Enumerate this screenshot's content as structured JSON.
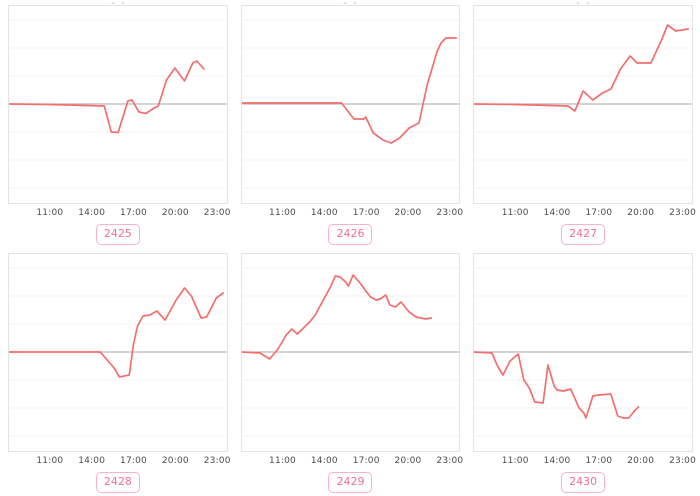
{
  "page": {
    "background": "#ffffff"
  },
  "styles": {
    "line_color": "#f46e6e",
    "zero_line_color": "#bababa",
    "grid_color": "#f5f2f2",
    "plot_border_color": "#e3e3e3",
    "tick_text_color": "#4c4c4c",
    "badge_border_color": "#f8b3c6",
    "badge_text_color": "#ee7096"
  },
  "axis": {
    "tick_labels": [
      "11:00",
      "14:00",
      "17:00",
      "20:00",
      "23:00"
    ],
    "tick_hours": [
      11,
      14,
      17,
      20,
      23
    ],
    "x_domain_hours": [
      8.0,
      23.75
    ],
    "y_domain": [
      -100,
      99
    ],
    "baseline_value": 0,
    "grid_step_units": 28,
    "grid_on": true,
    "legend": "none",
    "y_tick_labels": []
  },
  "chart_data": [
    {
      "id": "2425",
      "type": "line",
      "title": "",
      "xlabel": "",
      "ylabel": "",
      "x_unit": "time_of_day_hours",
      "y_unit": "arbitrary_units_vs_baseline",
      "points": [
        [
          8.0,
          0
        ],
        [
          11.0,
          -0.5
        ],
        [
          14.9,
          -2
        ],
        [
          15.4,
          -28
        ],
        [
          15.9,
          -28.5
        ],
        [
          16.6,
          3
        ],
        [
          16.9,
          4
        ],
        [
          17.4,
          -8
        ],
        [
          17.9,
          -9.5
        ],
        [
          18.5,
          -4
        ],
        [
          18.8,
          -2
        ],
        [
          19.4,
          24
        ],
        [
          20.0,
          36
        ],
        [
          20.7,
          23
        ],
        [
          21.3,
          41
        ],
        [
          21.6,
          43
        ],
        [
          22.1,
          35
        ]
      ]
    },
    {
      "id": "2426",
      "type": "line",
      "title": "",
      "xlabel": "",
      "ylabel": "",
      "x_unit": "time_of_day_hours",
      "y_unit": "arbitrary_units_vs_baseline",
      "points": [
        [
          8.0,
          1
        ],
        [
          12.0,
          1
        ],
        [
          15.2,
          1
        ],
        [
          16.1,
          -15
        ],
        [
          16.8,
          -15
        ],
        [
          16.95,
          -13
        ],
        [
          17.5,
          -29
        ],
        [
          18.2,
          -36
        ],
        [
          18.8,
          -39
        ],
        [
          19.4,
          -34
        ],
        [
          20.1,
          -24
        ],
        [
          20.8,
          -19
        ],
        [
          21.4,
          19
        ],
        [
          22.1,
          52
        ],
        [
          22.4,
          61
        ],
        [
          22.75,
          66
        ],
        [
          23.5,
          66
        ]
      ]
    },
    {
      "id": "2427",
      "type": "line",
      "title": "",
      "xlabel": "",
      "ylabel": "",
      "x_unit": "time_of_day_hours",
      "y_unit": "arbitrary_units_vs_baseline",
      "points": [
        [
          8.0,
          0
        ],
        [
          11.0,
          -0.5
        ],
        [
          14.8,
          -2
        ],
        [
          15.3,
          -7
        ],
        [
          15.9,
          13
        ],
        [
          16.6,
          4
        ],
        [
          17.3,
          11
        ],
        [
          17.9,
          15
        ],
        [
          18.6,
          35
        ],
        [
          19.3,
          48
        ],
        [
          19.8,
          41
        ],
        [
          20.8,
          41
        ],
        [
          21.6,
          65
        ],
        [
          22.0,
          79
        ],
        [
          22.6,
          73
        ],
        [
          23.5,
          75
        ]
      ]
    },
    {
      "id": "2428",
      "type": "line",
      "title": "",
      "xlabel": "",
      "ylabel": "",
      "x_unit": "time_of_day_hours",
      "y_unit": "arbitrary_units_vs_baseline",
      "points": [
        [
          8.0,
          0
        ],
        [
          11.0,
          0
        ],
        [
          14.6,
          0
        ],
        [
          15.3,
          -11
        ],
        [
          15.6,
          -16
        ],
        [
          16.0,
          -25
        ],
        [
          16.7,
          -23
        ],
        [
          17.0,
          7
        ],
        [
          17.3,
          26
        ],
        [
          17.7,
          36
        ],
        [
          18.2,
          37
        ],
        [
          18.7,
          41
        ],
        [
          19.3,
          32
        ],
        [
          20.1,
          52
        ],
        [
          20.7,
          64
        ],
        [
          21.2,
          56
        ],
        [
          21.9,
          34
        ],
        [
          22.3,
          35
        ],
        [
          23.0,
          54
        ],
        [
          23.5,
          59
        ]
      ]
    },
    {
      "id": "2429",
      "type": "line",
      "title": "",
      "xlabel": "",
      "ylabel": "",
      "x_unit": "time_of_day_hours",
      "y_unit": "arbitrary_units_vs_baseline",
      "points": [
        [
          8.0,
          0
        ],
        [
          9.3,
          -1
        ],
        [
          10.0,
          -7
        ],
        [
          10.6,
          3
        ],
        [
          11.2,
          17
        ],
        [
          11.6,
          23
        ],
        [
          12.0,
          18
        ],
        [
          12.9,
          30
        ],
        [
          13.3,
          37
        ],
        [
          14.0,
          55
        ],
        [
          14.4,
          65
        ],
        [
          14.75,
          76
        ],
        [
          15.1,
          75
        ],
        [
          15.5,
          70
        ],
        [
          15.7,
          66
        ],
        [
          16.05,
          77
        ],
        [
          16.6,
          68
        ],
        [
          16.9,
          62
        ],
        [
          17.3,
          55
        ],
        [
          17.7,
          52
        ],
        [
          18.0,
          53
        ],
        [
          18.4,
          57
        ],
        [
          18.7,
          47
        ],
        [
          19.1,
          45
        ],
        [
          19.5,
          50
        ],
        [
          20.1,
          40
        ],
        [
          20.6,
          35
        ],
        [
          21.3,
          33
        ],
        [
          21.7,
          34
        ]
      ]
    },
    {
      "id": "2430",
      "type": "line",
      "title": "",
      "xlabel": "",
      "ylabel": "",
      "x_unit": "time_of_day_hours",
      "y_unit": "arbitrary_units_vs_baseline",
      "points": [
        [
          8.0,
          0
        ],
        [
          9.3,
          -1
        ],
        [
          9.7,
          -14
        ],
        [
          10.1,
          -23
        ],
        [
          10.6,
          -9
        ],
        [
          11.2,
          -2
        ],
        [
          11.6,
          -28
        ],
        [
          12.0,
          -36
        ],
        [
          12.4,
          -50
        ],
        [
          13.0,
          -51
        ],
        [
          13.35,
          -13
        ],
        [
          13.8,
          -34
        ],
        [
          14.0,
          -38
        ],
        [
          14.5,
          -39
        ],
        [
          15.0,
          -37
        ],
        [
          15.6,
          -56
        ],
        [
          15.95,
          -61
        ],
        [
          16.1,
          -66
        ],
        [
          16.6,
          -44
        ],
        [
          17.0,
          -43
        ],
        [
          17.9,
          -42
        ],
        [
          18.4,
          -64
        ],
        [
          18.8,
          -66
        ],
        [
          19.2,
          -66
        ],
        [
          19.6,
          -59
        ],
        [
          19.9,
          -55
        ]
      ]
    }
  ]
}
